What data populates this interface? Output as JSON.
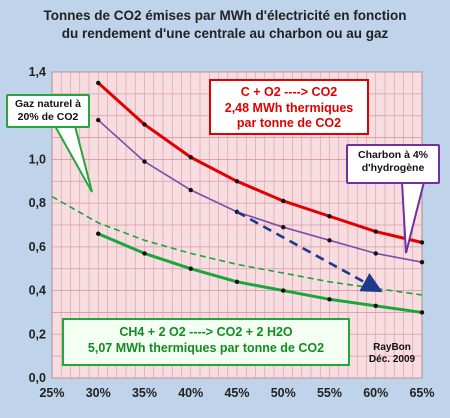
{
  "chart_data": {
    "type": "line",
    "title_lines": [
      "Tonnes de CO2 émises par MWh d'électricité en fonction",
      "du rendement d'une centrale au charbon ou au gaz"
    ],
    "categories": [
      "25%",
      "30%",
      "35%",
      "40%",
      "45%",
      "50%",
      "55%",
      "60%",
      "65%"
    ],
    "x": [
      0.25,
      0.3,
      0.35,
      0.4,
      0.45,
      0.5,
      0.55,
      0.6,
      0.65
    ],
    "xlim": [
      0.25,
      0.65
    ],
    "ylim": [
      0,
      1.4
    ],
    "y_ticks": [
      "0,0",
      "0,2",
      "0,4",
      "0,6",
      "0,8",
      "1,0",
      "1,2",
      "1,4"
    ],
    "grid": true,
    "colors": {
      "background": "#bfd3ea",
      "plot_background": "#f7dce0",
      "grid": "#d89aa8",
      "carbon": "#e00000",
      "charbon_h": "#7b4ea7",
      "gas": "#1aa63a",
      "arrow": "#1f3a8a"
    },
    "series": [
      {
        "values": [
          null,
          1.35,
          1.16,
          1.01,
          0.9,
          0.81,
          0.74,
          0.67,
          0.62
        ]
      },
      {
        "values": [
          null,
          1.18,
          0.99,
          0.86,
          0.76,
          0.69,
          0.63,
          0.57,
          0.53
        ]
      },
      {
        "values": [
          0.83,
          0.71,
          0.63,
          0.57,
          0.52,
          0.48,
          0.44,
          0.41,
          0.38
        ]
      },
      {
        "values": [
          null,
          0.66,
          0.57,
          0.5,
          0.44,
          0.4,
          0.36,
          0.33,
          0.3
        ]
      }
    ],
    "arrow": {
      "from": [
        0.45,
        0.76
      ],
      "to": [
        0.6,
        0.41
      ]
    },
    "annotations": {
      "co2_box": [
        "C + O2 ----> CO2",
        "2,48 MWh thermiques",
        "par tonne de CO2"
      ],
      "ch4_box": [
        "CH4 + 2 O2  ----> CO2  + 2 H2O",
        "5,07 MWh thermiques par tonne de CO2"
      ],
      "gaz_box": [
        "Gaz naturel à",
        "20% de CO2"
      ],
      "charbon_box": [
        "Charbon à 4%",
        "d'hydrogène"
      ],
      "credit": [
        "RayBon",
        "Déc. 2009"
      ]
    }
  }
}
